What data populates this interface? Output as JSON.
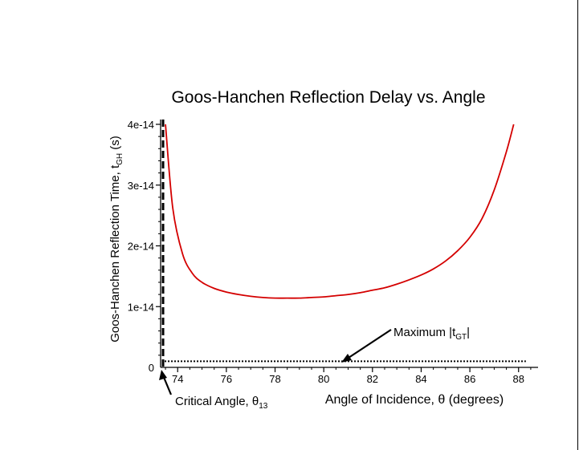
{
  "chart_data": {
    "type": "line",
    "title": "Goos-Hanchen Reflection Delay vs. Angle",
    "xlabel": "Angle of Incidence, θ (degrees)",
    "ylabel": {
      "base": "Goos-Hanchen Reflection Time, t",
      "sub": "GH",
      "tail": " (s)"
    },
    "xlim": [
      73.3,
      88.8
    ],
    "ylim": [
      0,
      4e-14
    ],
    "x_ticks": [
      74,
      76,
      78,
      80,
      82,
      84,
      86,
      88
    ],
    "x_tick_labels": [
      "74",
      "76",
      "78",
      "80",
      "82",
      "84",
      "86",
      "88"
    ],
    "y_ticks": [
      0,
      1e-14,
      2e-14,
      3e-14,
      4e-14
    ],
    "y_tick_labels": [
      "0",
      "1e-14",
      "2e-14",
      "3e-14",
      "4e-14"
    ],
    "series": [
      {
        "color": "#d40000",
        "x": [
          73.5,
          73.8,
          74.2,
          74.6,
          75.0,
          75.5,
          76.0,
          76.5,
          77.0,
          77.5,
          78.0,
          78.5,
          79.0,
          79.5,
          80.0,
          80.5,
          81.0,
          81.5,
          82.0,
          82.5,
          83.0,
          83.5,
          84.0,
          84.5,
          85.0,
          85.5,
          86.0,
          86.5,
          87.0,
          87.5,
          87.8
        ],
        "y": [
          4e-14,
          2.62e-14,
          1.87e-14,
          1.55e-14,
          1.4e-14,
          1.3e-14,
          1.24e-14,
          1.2e-14,
          1.17e-14,
          1.15e-14,
          1.14e-14,
          1.14e-14,
          1.14e-14,
          1.15e-14,
          1.16e-14,
          1.18e-14,
          1.2e-14,
          1.23e-14,
          1.27e-14,
          1.31e-14,
          1.37e-14,
          1.44e-14,
          1.52e-14,
          1.62e-14,
          1.75e-14,
          1.92e-14,
          2.14e-14,
          2.45e-14,
          2.92e-14,
          3.55e-14,
          4e-14
        ]
      }
    ],
    "critical_angle": 73.4,
    "max_tgt": 1e-15,
    "annotations": {
      "maximum": {
        "base": "Maximum |t",
        "sub": "GT",
        "tail": "|"
      },
      "critical": {
        "base": "Critical Angle, θ",
        "sub": "13"
      }
    }
  }
}
